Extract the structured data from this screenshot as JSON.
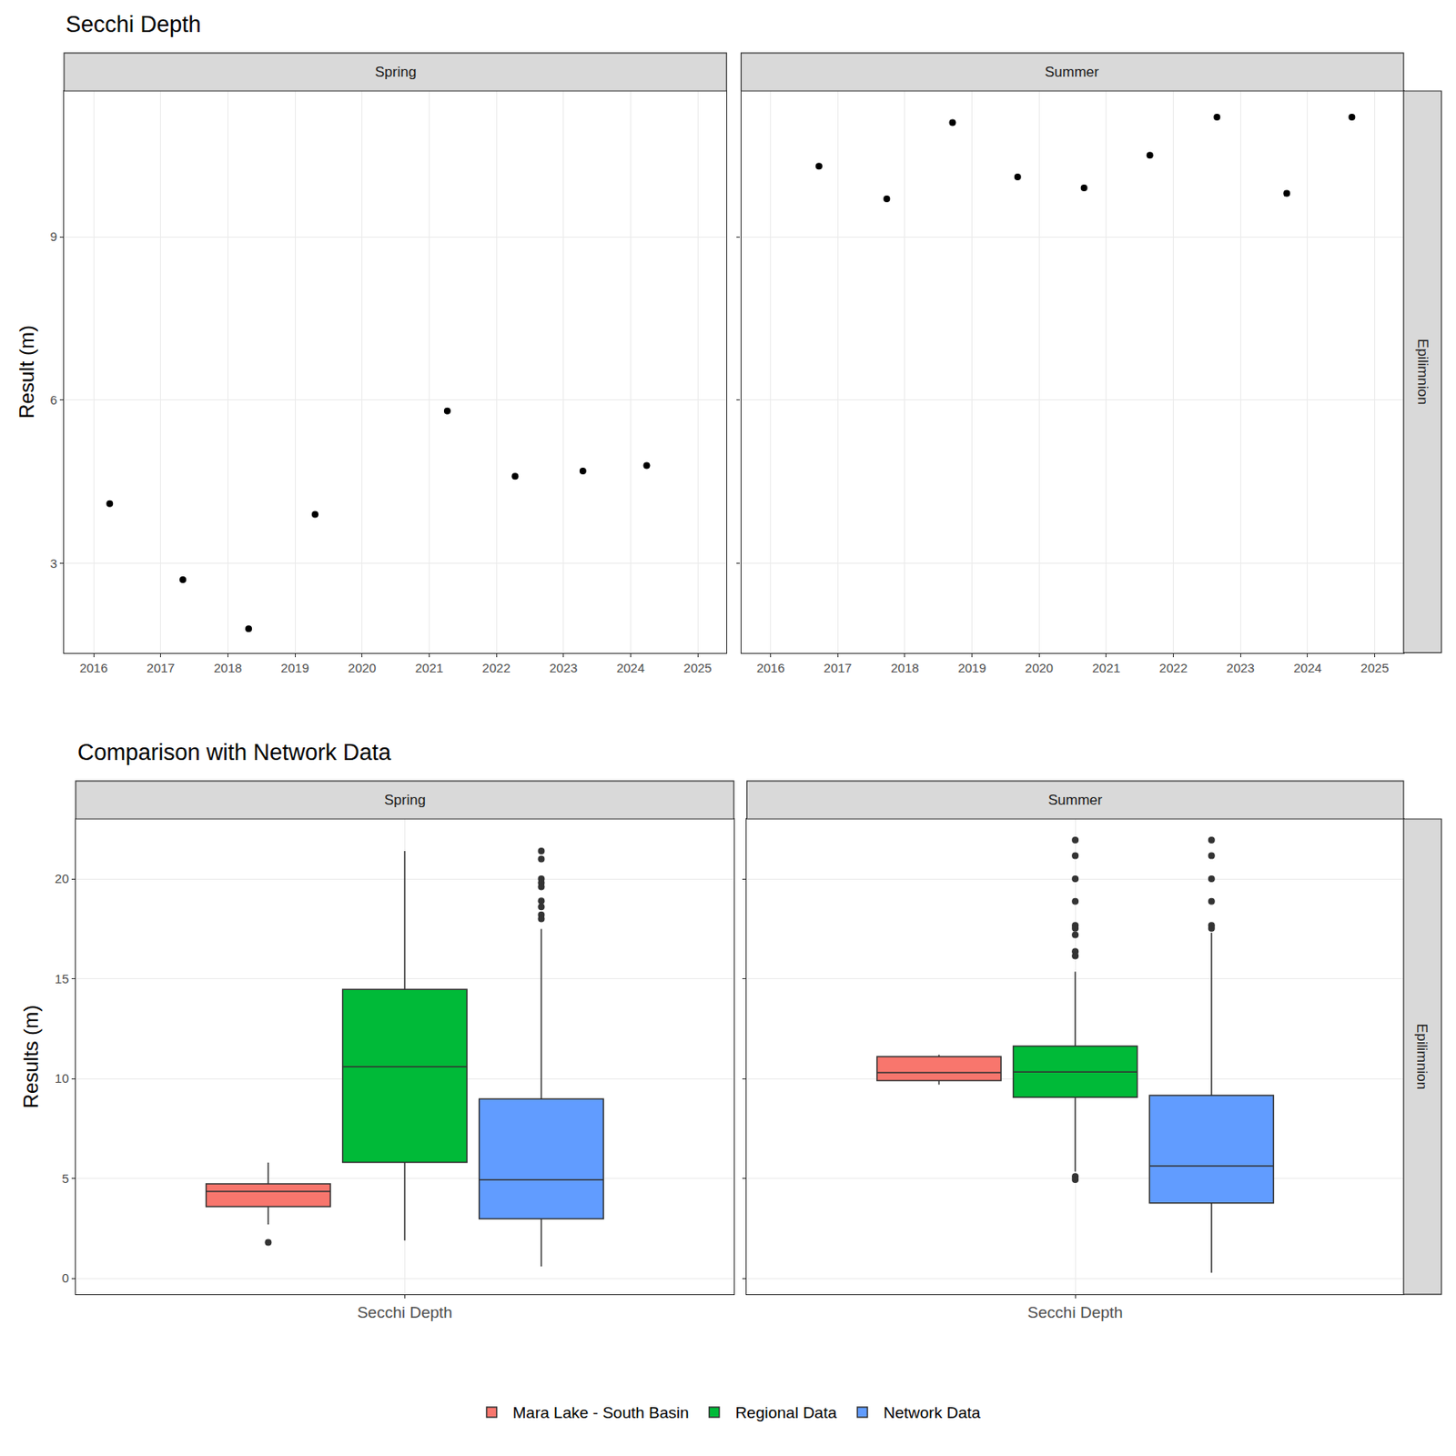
{
  "chart_data": [
    {
      "type": "scatter",
      "title": "Secchi Depth",
      "y_label": "Result (m)",
      "row_label": "Epilimnion",
      "color": "#000000",
      "marker": "circle",
      "grid": true,
      "xlim": [
        2015.56,
        2025.43
      ],
      "xticks": [
        2016,
        2017,
        2018,
        2019,
        2020,
        2021,
        2022,
        2023,
        2024,
        2025
      ],
      "ylim": [
        1.36,
        11.68
      ],
      "yticks": [
        3,
        6,
        9
      ],
      "panels": [
        {
          "name": "Spring",
          "x": [
            2016.24,
            2017.33,
            2018.31,
            2019.3,
            2021.27,
            2022.28,
            2023.29,
            2024.24
          ],
          "values": [
            4.1,
            2.7,
            1.8,
            3.9,
            5.8,
            4.6,
            4.7,
            4.8
          ]
        },
        {
          "name": "Summer",
          "x": [
            2016.72,
            2017.73,
            2018.71,
            2019.68,
            2020.67,
            2021.65,
            2022.65,
            2023.69,
            2024.66
          ],
          "values": [
            10.3,
            9.7,
            11.1,
            10.1,
            9.9,
            10.5,
            11.2,
            9.8,
            11.2
          ]
        }
      ]
    },
    {
      "type": "box",
      "title": "Comparison with Network Data",
      "y_label": "Results (m)",
      "row_label": "Epilimnion",
      "category": "Secchi Depth",
      "grid": true,
      "legend": "bottom",
      "ylim": [
        -0.8,
        23
      ],
      "yticks": [
        0,
        5,
        10,
        15,
        20
      ],
      "series": [
        {
          "name": "Mara Lake - South Basin",
          "color": "#F8766D"
        },
        {
          "name": "Regional Data",
          "color": "#00BA38"
        },
        {
          "name": "Network Data",
          "color": "#619CFF"
        }
      ],
      "panels": [
        {
          "name": "Spring",
          "boxes": [
            {
              "q1": 3.6,
              "median": 4.35,
              "q3": 4.73,
              "lower": 2.7,
              "upper": 5.8,
              "outliers": [
                1.8
              ]
            },
            {
              "q1": 5.81,
              "median": 10.6,
              "q3": 14.47,
              "lower": 1.9,
              "upper": 21.4,
              "outliers": []
            },
            {
              "q1": 2.98,
              "median": 4.93,
              "q3": 8.98,
              "lower": 0.6,
              "upper": 17.49,
              "outliers": [
                21.4,
                21.0,
                20.0,
                19.8,
                19.6,
                18.9,
                18.6,
                18.2,
                18.0
              ]
            }
          ]
        },
        {
          "name": "Summer",
          "boxes": [
            {
              "q1": 9.9,
              "median": 10.3,
              "q3": 11.1,
              "lower": 9.7,
              "upper": 11.2,
              "outliers": []
            },
            {
              "q1": 9.07,
              "median": 10.33,
              "q3": 11.63,
              "lower": 5.35,
              "upper": 15.35,
              "outliers": [
                21.95,
                21.16,
                20.0,
                18.88,
                17.67,
                17.53,
                17.2,
                16.37,
                16.14,
                5.1,
                4.95
              ]
            },
            {
              "q1": 3.77,
              "median": 5.63,
              "q3": 9.16,
              "lower": 0.28,
              "upper": 17.3,
              "outliers": [
                21.95,
                21.16,
                20.0,
                18.88,
                17.67,
                17.53
              ]
            }
          ]
        }
      ]
    }
  ]
}
